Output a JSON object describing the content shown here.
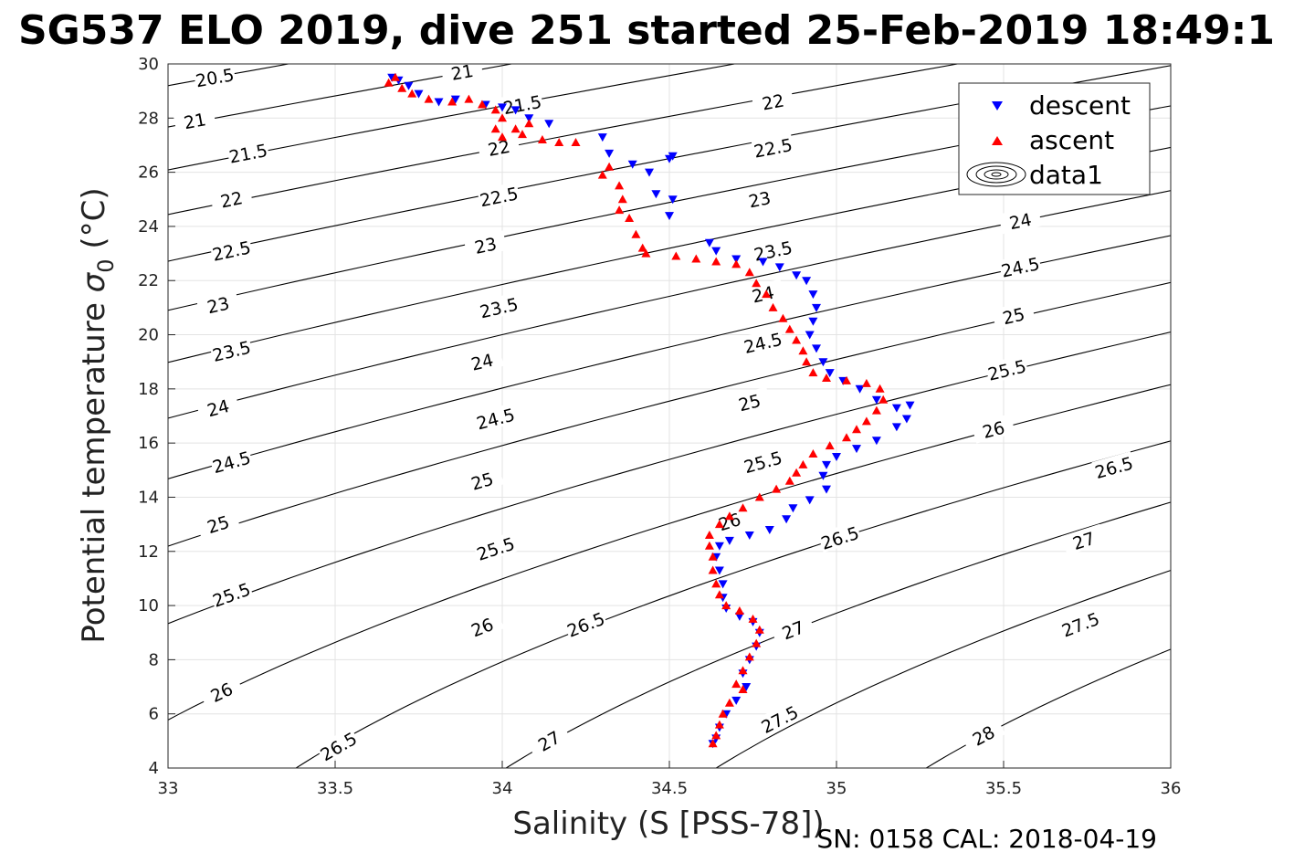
{
  "title": "SG537 ELO 2019, dive 251 started 25-Feb-2019 18:49:1",
  "footer": "SN: 0158  CAL: 2018-04-19",
  "chart_data": {
    "type": "scatter",
    "xlabel": "Salinity (S [PSS-78])",
    "ylabel_main": "Potential temperature ",
    "ylabel_sigma": "σ",
    "ylabel_sub": "0",
    "ylabel_unit": " (°C)",
    "xlim": [
      33,
      36
    ],
    "ylim": [
      4,
      30
    ],
    "x_ticks": [
      "33",
      "33.5",
      "34",
      "34.5",
      "35",
      "35.5",
      "36"
    ],
    "y_ticks": [
      "4",
      "6",
      "8",
      "10",
      "12",
      "14",
      "16",
      "18",
      "20",
      "22",
      "24",
      "26",
      "28",
      "30"
    ],
    "grid": true,
    "legend_position": "top-right",
    "legend": [
      {
        "label": "descent",
        "marker": "triangle-down",
        "color": "#0000ff"
      },
      {
        "label": "ascent",
        "marker": "triangle-up",
        "color": "#ff0000"
      },
      {
        "label": "data1",
        "marker": "contour",
        "color": "#000000"
      }
    ],
    "contours": {
      "levels": [
        20.5,
        21,
        21.5,
        22,
        22.5,
        23,
        23.5,
        24,
        24.5,
        25,
        25.5,
        26,
        26.5,
        27,
        27.5,
        28
      ],
      "labels": [
        {
          "text": "20.5",
          "s": 33.14,
          "t": 29.5
        },
        {
          "text": "21",
          "s": 33.08,
          "t": 27.9
        },
        {
          "text": "21.5",
          "s": 33.24,
          "t": 26.7
        },
        {
          "text": "22",
          "s": 33.19,
          "t": 25.0
        },
        {
          "text": "22.5",
          "s": 33.19,
          "t": 23.1
        },
        {
          "text": "23",
          "s": 33.15,
          "t": 21.1
        },
        {
          "text": "23.5",
          "s": 33.19,
          "t": 19.4
        },
        {
          "text": "24",
          "s": 33.15,
          "t": 17.3
        },
        {
          "text": "24.5",
          "s": 33.19,
          "t": 15.3
        },
        {
          "text": "25",
          "s": 33.15,
          "t": 13.0
        },
        {
          "text": "25.5",
          "s": 33.19,
          "t": 10.4
        },
        {
          "text": "26",
          "s": 33.16,
          "t": 6.8
        },
        {
          "text": "26.5",
          "s": 33.51,
          "t": 4.8
        },
        {
          "text": "21",
          "s": 33.88,
          "t": 29.7
        },
        {
          "text": "21.5",
          "s": 34.06,
          "t": 28.5
        },
        {
          "text": "22",
          "s": 33.99,
          "t": 26.9
        },
        {
          "text": "22.5",
          "s": 33.99,
          "t": 25.1
        },
        {
          "text": "23",
          "s": 33.95,
          "t": 23.3
        },
        {
          "text": "23.5",
          "s": 33.99,
          "t": 21.0
        },
        {
          "text": "24",
          "s": 33.94,
          "t": 19.0
        },
        {
          "text": "24.5",
          "s": 33.98,
          "t": 16.9
        },
        {
          "text": "25",
          "s": 33.94,
          "t": 14.6
        },
        {
          "text": "25.5",
          "s": 33.98,
          "t": 12.1
        },
        {
          "text": "26",
          "s": 33.94,
          "t": 9.2
        },
        {
          "text": "26.5",
          "s": 34.25,
          "t": 9.3
        },
        {
          "text": "27",
          "s": 34.14,
          "t": 5.0
        },
        {
          "text": "22",
          "s": 34.81,
          "t": 28.6
        },
        {
          "text": "22.5",
          "s": 34.81,
          "t": 26.9
        },
        {
          "text": "23",
          "s": 34.77,
          "t": 25.0
        },
        {
          "text": "23.5",
          "s": 34.81,
          "t": 23.1
        },
        {
          "text": "24",
          "s": 34.78,
          "t": 21.5
        },
        {
          "text": "24.5",
          "s": 34.78,
          "t": 19.7
        },
        {
          "text": "25",
          "s": 34.74,
          "t": 17.5
        },
        {
          "text": "25.5",
          "s": 34.78,
          "t": 15.3
        },
        {
          "text": "26",
          "s": 34.68,
          "t": 13.1
        },
        {
          "text": "26.5",
          "s": 35.01,
          "t": 12.5
        },
        {
          "text": "27",
          "s": 34.87,
          "t": 9.1
        },
        {
          "text": "27.5",
          "s": 34.83,
          "t": 5.8
        },
        {
          "text": "24",
          "s": 35.55,
          "t": 24.2
        },
        {
          "text": "24.5",
          "s": 35.55,
          "t": 22.5
        },
        {
          "text": "25",
          "s": 35.53,
          "t": 20.7
        },
        {
          "text": "25.5",
          "s": 35.51,
          "t": 18.7
        },
        {
          "text": "26",
          "s": 35.47,
          "t": 16.5
        },
        {
          "text": "26.5",
          "s": 35.83,
          "t": 15.1
        },
        {
          "text": "27",
          "s": 35.74,
          "t": 12.4
        },
        {
          "text": "27.5",
          "s": 35.73,
          "t": 9.3
        },
        {
          "text": "28",
          "s": 35.44,
          "t": 5.2
        }
      ]
    },
    "series": [
      {
        "name": "descent",
        "color": "#0000ff",
        "marker": "triangle-down",
        "points": [
          [
            33.67,
            29.5
          ],
          [
            33.69,
            29.4
          ],
          [
            33.72,
            29.2
          ],
          [
            33.75,
            28.9
          ],
          [
            33.81,
            28.6
          ],
          [
            33.86,
            28.7
          ],
          [
            33.95,
            28.5
          ],
          [
            34.0,
            28.4
          ],
          [
            34.04,
            28.3
          ],
          [
            34.08,
            28.0
          ],
          [
            34.14,
            27.8
          ],
          [
            34.3,
            27.3
          ],
          [
            34.32,
            26.7
          ],
          [
            34.39,
            26.3
          ],
          [
            34.44,
            26.0
          ],
          [
            34.5,
            26.5
          ],
          [
            34.51,
            26.6
          ],
          [
            34.51,
            25.0
          ],
          [
            34.5,
            24.4
          ],
          [
            34.46,
            25.2
          ],
          [
            34.62,
            23.4
          ],
          [
            34.64,
            23.1
          ],
          [
            34.7,
            22.8
          ],
          [
            34.78,
            22.7
          ],
          [
            34.83,
            22.5
          ],
          [
            34.88,
            22.2
          ],
          [
            34.91,
            22.0
          ],
          [
            34.93,
            21.5
          ],
          [
            34.94,
            21.0
          ],
          [
            34.93,
            20.5
          ],
          [
            34.92,
            20.0
          ],
          [
            34.94,
            19.5
          ],
          [
            34.96,
            19.0
          ],
          [
            34.98,
            18.6
          ],
          [
            35.02,
            18.3
          ],
          [
            35.07,
            18.0
          ],
          [
            35.12,
            17.6
          ],
          [
            35.18,
            17.3
          ],
          [
            35.22,
            17.4
          ],
          [
            35.21,
            16.9
          ],
          [
            35.18,
            16.6
          ],
          [
            35.12,
            16.1
          ],
          [
            35.06,
            15.8
          ],
          [
            35.0,
            15.5
          ],
          [
            34.97,
            15.2
          ],
          [
            34.96,
            14.8
          ],
          [
            34.97,
            14.3
          ],
          [
            34.92,
            13.9
          ],
          [
            34.87,
            13.6
          ],
          [
            34.85,
            13.2
          ],
          [
            34.8,
            12.8
          ],
          [
            34.74,
            12.6
          ],
          [
            34.68,
            12.4
          ],
          [
            34.65,
            12.2
          ],
          [
            34.64,
            11.8
          ],
          [
            34.65,
            11.3
          ],
          [
            34.66,
            10.8
          ],
          [
            34.66,
            10.3
          ],
          [
            34.67,
            9.9
          ],
          [
            34.71,
            9.6
          ],
          [
            34.75,
            9.4
          ],
          [
            34.77,
            9.0
          ],
          [
            34.76,
            8.5
          ],
          [
            34.74,
            8.0
          ],
          [
            34.72,
            7.5
          ],
          [
            34.73,
            7.0
          ],
          [
            34.7,
            6.5
          ],
          [
            34.67,
            6.0
          ],
          [
            34.65,
            5.5
          ],
          [
            34.64,
            5.1
          ],
          [
            34.63,
            4.9
          ]
        ]
      },
      {
        "name": "ascent",
        "color": "#ff0000",
        "marker": "triangle-up",
        "points": [
          [
            33.66,
            29.3
          ],
          [
            33.68,
            29.5
          ],
          [
            33.7,
            29.1
          ],
          [
            33.73,
            28.9
          ],
          [
            33.78,
            28.7
          ],
          [
            33.85,
            28.6
          ],
          [
            33.9,
            28.7
          ],
          [
            33.94,
            28.5
          ],
          [
            33.98,
            28.3
          ],
          [
            34.0,
            28.0
          ],
          [
            33.98,
            27.6
          ],
          [
            34.0,
            27.3
          ],
          [
            34.04,
            27.6
          ],
          [
            34.08,
            27.8
          ],
          [
            34.06,
            27.4
          ],
          [
            34.12,
            27.2
          ],
          [
            34.17,
            27.1
          ],
          [
            34.22,
            27.1
          ],
          [
            34.32,
            26.2
          ],
          [
            34.3,
            25.9
          ],
          [
            34.35,
            25.5
          ],
          [
            34.36,
            25.0
          ],
          [
            34.35,
            24.6
          ],
          [
            34.38,
            24.3
          ],
          [
            34.4,
            23.7
          ],
          [
            34.42,
            23.2
          ],
          [
            34.43,
            23.0
          ],
          [
            34.52,
            22.9
          ],
          [
            34.58,
            22.8
          ],
          [
            34.64,
            22.7
          ],
          [
            34.7,
            22.6
          ],
          [
            34.74,
            22.3
          ],
          [
            34.76,
            21.9
          ],
          [
            34.79,
            21.5
          ],
          [
            34.81,
            21.0
          ],
          [
            34.84,
            20.6
          ],
          [
            34.86,
            20.2
          ],
          [
            34.88,
            19.8
          ],
          [
            34.9,
            19.4
          ],
          [
            34.91,
            19.0
          ],
          [
            34.93,
            18.6
          ],
          [
            34.97,
            18.4
          ],
          [
            35.03,
            18.3
          ],
          [
            35.09,
            18.2
          ],
          [
            35.13,
            18.0
          ],
          [
            35.14,
            17.6
          ],
          [
            35.12,
            17.2
          ],
          [
            35.09,
            16.8
          ],
          [
            35.06,
            16.5
          ],
          [
            35.03,
            16.2
          ],
          [
            34.98,
            15.9
          ],
          [
            34.93,
            15.6
          ],
          [
            34.9,
            15.2
          ],
          [
            34.88,
            14.9
          ],
          [
            34.86,
            14.6
          ],
          [
            34.82,
            14.3
          ],
          [
            34.77,
            14.0
          ],
          [
            34.72,
            13.6
          ],
          [
            34.68,
            13.3
          ],
          [
            34.65,
            13.0
          ],
          [
            34.62,
            12.6
          ],
          [
            34.62,
            12.2
          ],
          [
            34.63,
            11.8
          ],
          [
            34.63,
            11.3
          ],
          [
            34.64,
            10.8
          ],
          [
            34.65,
            10.4
          ],
          [
            34.67,
            10.0
          ],
          [
            34.71,
            9.8
          ],
          [
            34.75,
            9.5
          ],
          [
            34.77,
            9.1
          ],
          [
            34.76,
            8.6
          ],
          [
            34.74,
            8.1
          ],
          [
            34.72,
            7.6
          ],
          [
            34.7,
            7.1
          ],
          [
            34.72,
            6.9
          ],
          [
            34.68,
            6.4
          ],
          [
            34.66,
            6.0
          ],
          [
            34.65,
            5.6
          ],
          [
            34.64,
            5.2
          ],
          [
            34.63,
            4.9
          ]
        ]
      }
    ]
  }
}
